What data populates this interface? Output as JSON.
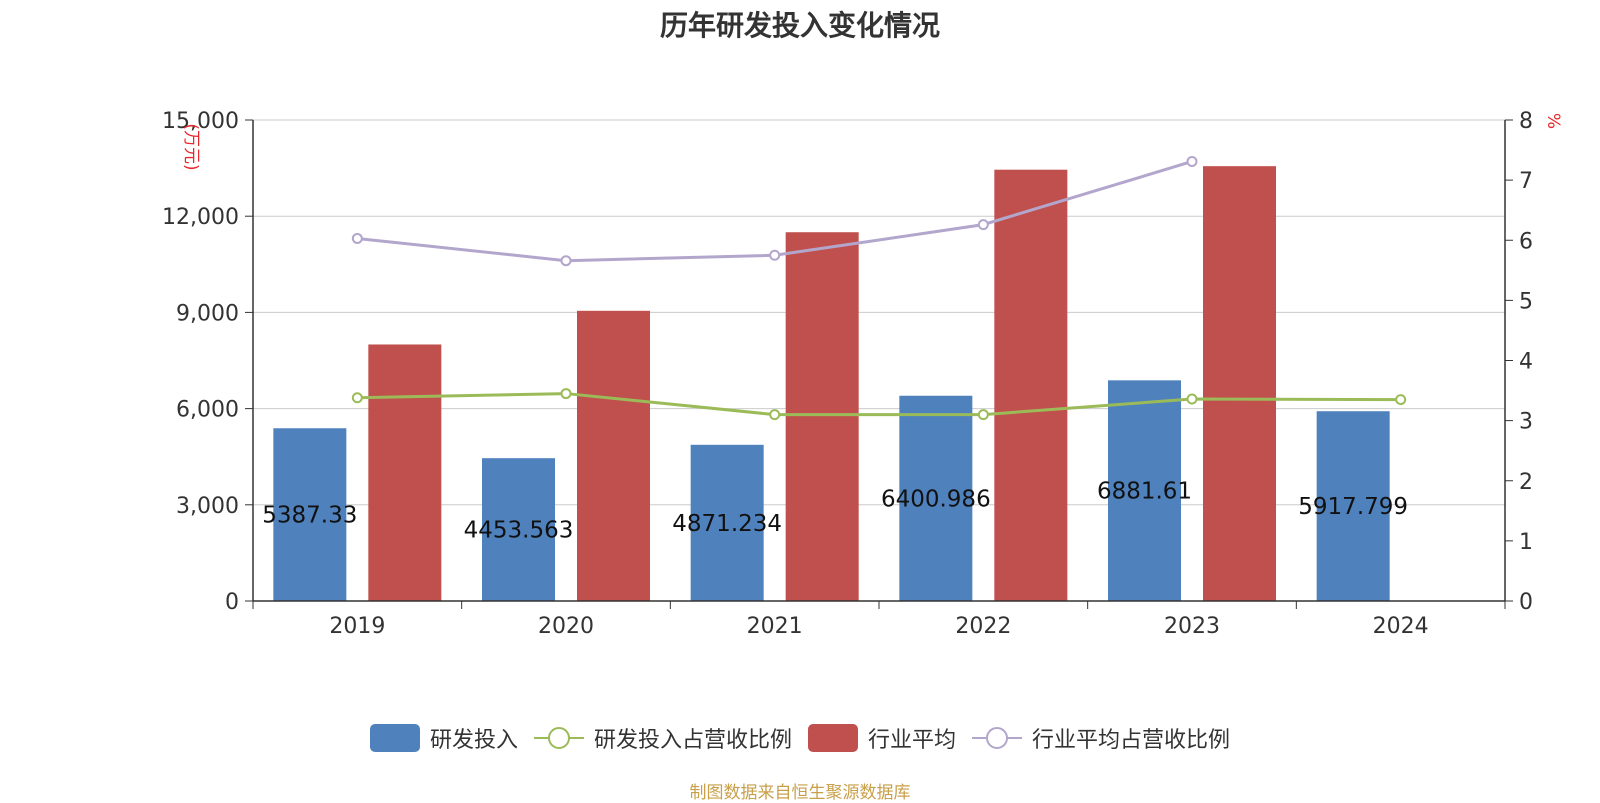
{
  "chart_data": {
    "type": "bar",
    "title": "历年研发投入变化情况",
    "categories": [
      "2019",
      "2020",
      "2021",
      "2022",
      "2023",
      "2024"
    ],
    "left_axis": {
      "unit_label": "(万元)",
      "ylim": [
        0,
        15000
      ],
      "ticks": [
        "0",
        "3,000",
        "6,000",
        "9,000",
        "12,000",
        "15,000"
      ]
    },
    "right_axis": {
      "unit_label": "%",
      "ylim": [
        0,
        8
      ],
      "ticks": [
        "0",
        "1",
        "2",
        "3",
        "4",
        "5",
        "6",
        "7",
        "8"
      ]
    },
    "series": [
      {
        "name": "研发投入",
        "kind": "bar",
        "axis": "left",
        "color": "#4f81bd",
        "values": [
          5387.33,
          4453.563,
          4871.234,
          6400.986,
          6881.61,
          5917.799
        ],
        "data_labels": [
          "5387.33",
          "4453.563",
          "4871.234",
          "6400.986",
          "6881.61",
          "5917.799"
        ]
      },
      {
        "name": "研发投入占营收比例",
        "kind": "line",
        "axis": "right",
        "color": "#9bbb59",
        "values": [
          3.38,
          3.45,
          3.1,
          3.1,
          3.36,
          3.35
        ]
      },
      {
        "name": "行业平均",
        "kind": "bar",
        "axis": "left",
        "color": "#c0504d",
        "values": [
          8000,
          9050,
          11500,
          13450,
          13560,
          null
        ]
      },
      {
        "name": "行业平均占营收比例",
        "kind": "line",
        "axis": "right",
        "color": "#b3a6cc",
        "values": [
          6.03,
          5.66,
          5.75,
          6.26,
          7.31,
          null
        ]
      }
    ],
    "grid": true,
    "legend_position": "bottom"
  },
  "source_note": "制图数据来自恒生聚源数据库"
}
